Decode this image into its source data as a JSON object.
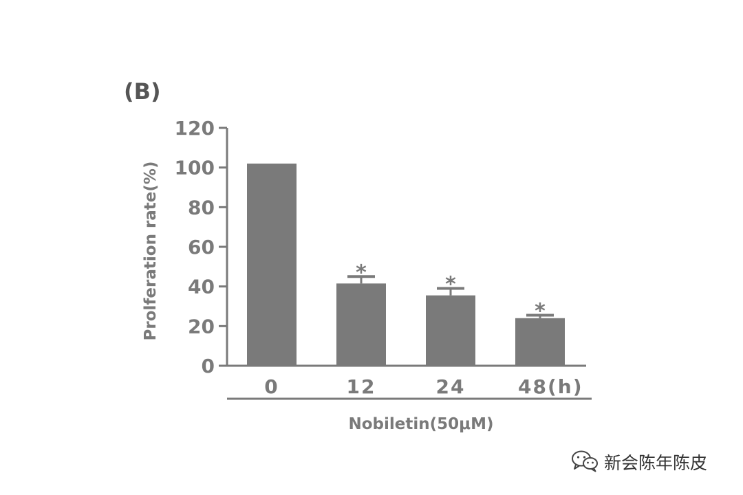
{
  "panel_label": "(B)",
  "chart_data": {
    "type": "bar",
    "categories": [
      "0",
      "12",
      "24",
      "48"
    ],
    "x_unit": "(h)",
    "values": [
      102,
      41.5,
      35.5,
      24
    ],
    "errors": [
      0,
      3.5,
      3.5,
      1.5
    ],
    "significance": [
      "",
      "*",
      "*",
      "*"
    ],
    "ylabel": "Prolferation rate(%)",
    "xlabel": "Nobiletin(50μM)",
    "ylim": [
      0,
      120
    ],
    "yticks": [
      0,
      20,
      40,
      60,
      80,
      100,
      120
    ],
    "grid": false,
    "colors": {
      "bar": "#7a7a7a",
      "axis": "#7a7a7a",
      "text": "#7a7a7a"
    }
  },
  "watermark": {
    "text": "新会陈年陈皮",
    "icon": "wechat-icon"
  }
}
